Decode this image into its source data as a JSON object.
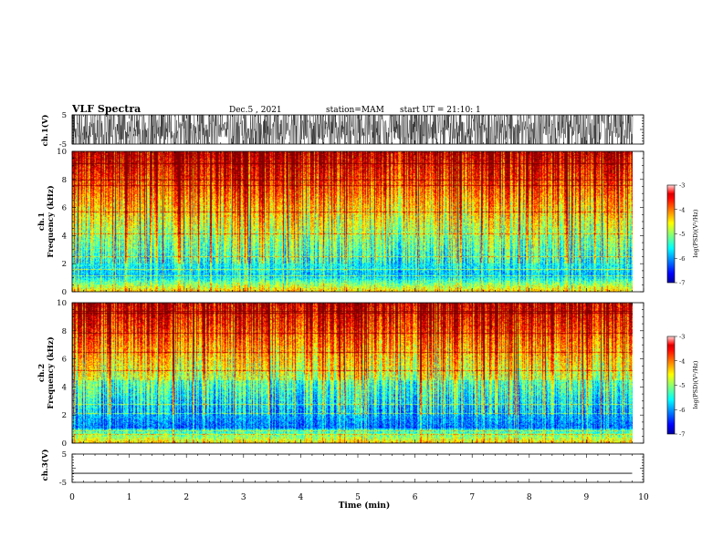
{
  "header": {
    "title": "VLF Spectra",
    "date": "Dec.5 , 2021",
    "station": "station=MAM",
    "start": "start UT = 21:10: 1"
  },
  "chart_data": [
    {
      "type": "line",
      "panel": "ch1-waveform",
      "ylabel": "ch.1(V)",
      "y_ticks": [
        "5",
        "-5"
      ],
      "ylim": [
        -5,
        5
      ],
      "xlim": [
        0,
        10
      ]
    },
    {
      "type": "heatmap",
      "panel": "ch1-spectrogram",
      "ylabel_line1": "ch.1",
      "ylabel_line2": "Frequency (kHz)",
      "y_ticks": [
        "0",
        "2",
        "4",
        "6",
        "8",
        "10"
      ],
      "ylim": [
        0,
        10
      ],
      "xlim": [
        0,
        9.8
      ],
      "colorbar": {
        "label": "log(PSD)(V²/Hz)",
        "ticks": [
          "-3",
          "-4",
          "-5",
          "-6",
          "-7"
        ],
        "range": [
          -7,
          -3
        ]
      }
    },
    {
      "type": "heatmap",
      "panel": "ch2-spectrogram",
      "ylabel_line1": "ch.2",
      "ylabel_line2": "Frequency (kHz)",
      "y_ticks": [
        "0",
        "2",
        "4",
        "6",
        "8",
        "10"
      ],
      "ylim": [
        0,
        10
      ],
      "xlim": [
        0,
        9.8
      ],
      "colorbar": {
        "label": "log(PSD)(V²/Hz)",
        "ticks": [
          "-3",
          "-4",
          "-5",
          "-6",
          "-7"
        ],
        "range": [
          -7,
          -3
        ]
      }
    },
    {
      "type": "line",
      "panel": "ch3-waveform",
      "ylabel": "ch.3(V)",
      "y_ticks": [
        "5",
        "-5"
      ],
      "ylim": [
        -5,
        5
      ],
      "xlim": [
        0,
        10
      ],
      "series": [
        {
          "x": [
            0,
            9.8
          ],
          "y": [
            -1.8,
            -1.8
          ]
        }
      ]
    }
  ],
  "x_axis": {
    "label": "Time (min)",
    "ticks": [
      "0",
      "1",
      "2",
      "3",
      "4",
      "5",
      "6",
      "7",
      "8",
      "9",
      "10"
    ],
    "range": [
      0,
      10
    ]
  },
  "colors": {
    "axis": "#000000",
    "background": "#ffffff"
  }
}
